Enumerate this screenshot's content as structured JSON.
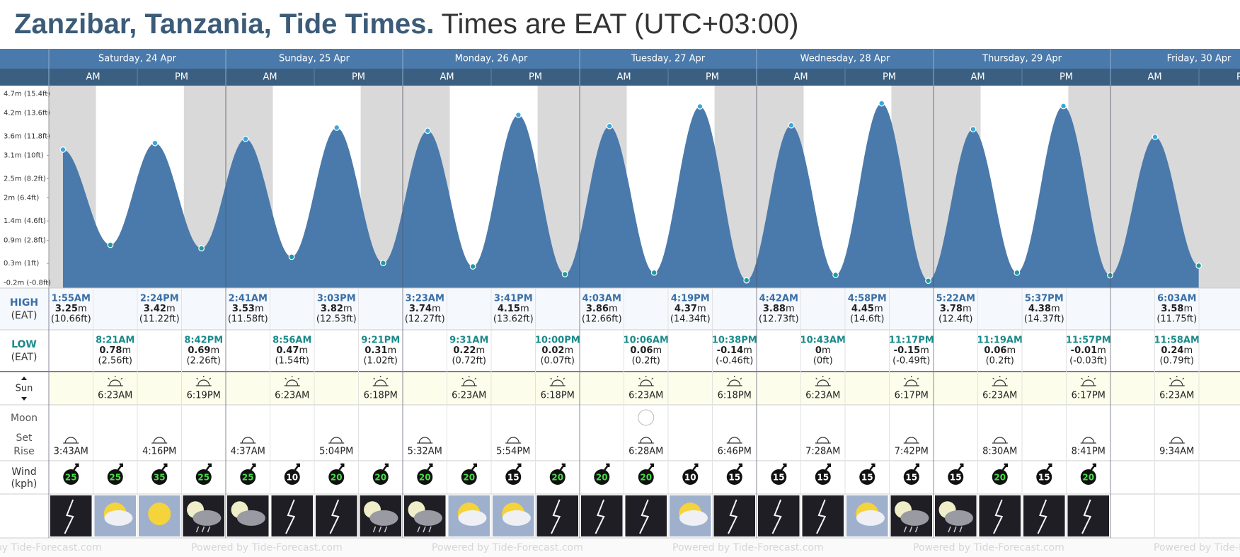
{
  "header": {
    "title": "Zanzibar, Tanzania, Tide Times.",
    "subtitle": "Times are EAT (UTC+03:00)"
  },
  "halves": [
    "AM",
    "PM"
  ],
  "labels": {
    "high": "HIGH",
    "low": "LOW",
    "tz": "(EAT)",
    "sun": "Sun",
    "moon": "Moon",
    "set": "Set",
    "rise": "Rise",
    "wind": "Wind",
    "wind_unit": "(kph)"
  },
  "unit": "m",
  "days": [
    {
      "name": "Saturday, 24 Apr",
      "high": [
        {
          "time": "1:55AM",
          "m": 3.25,
          "ft": "(10.66ft)"
        },
        null,
        {
          "time": "2:24PM",
          "m": 3.42,
          "ft": "(11.22ft)"
        },
        null
      ],
      "low": [
        null,
        {
          "time": "8:21AM",
          "m": 0.78,
          "ft": "(2.56ft)"
        },
        null,
        {
          "time": "8:42PM",
          "m": 0.69,
          "ft": "(2.26ft)"
        }
      ],
      "sun": [
        null,
        "6:23AM",
        null,
        "6:19PM"
      ],
      "moon": [
        "3:43AM",
        null,
        "4:16PM",
        null
      ],
      "wind": [
        25,
        25,
        35,
        25
      ]
    },
    {
      "name": "Sunday, 25 Apr",
      "high": [
        {
          "time": "2:41AM",
          "m": 3.53,
          "ft": "(11.58ft)"
        },
        null,
        {
          "time": "3:03PM",
          "m": 3.82,
          "ft": "(12.53ft)"
        },
        null
      ],
      "low": [
        null,
        {
          "time": "8:56AM",
          "m": 0.47,
          "ft": "(1.54ft)"
        },
        null,
        {
          "time": "9:21PM",
          "m": 0.31,
          "ft": "(1.02ft)"
        }
      ],
      "sun": [
        null,
        "6:23AM",
        null,
        "6:18PM"
      ],
      "moon": [
        "4:37AM",
        null,
        "5:04PM",
        null
      ],
      "wind": [
        25,
        10,
        20,
        20
      ]
    },
    {
      "name": "Monday, 26 Apr",
      "high": [
        {
          "time": "3:23AM",
          "m": 3.74,
          "ft": "(12.27ft)"
        },
        null,
        {
          "time": "3:41PM",
          "m": 4.15,
          "ft": "(13.62ft)"
        },
        null
      ],
      "low": [
        null,
        {
          "time": "9:31AM",
          "m": 0.22,
          "ft": "(0.72ft)"
        },
        null,
        {
          "time": "10:00PM",
          "m": 0.02,
          "ft": "(0.07ft)"
        }
      ],
      "sun": [
        null,
        "6:23AM",
        null,
        "6:18PM"
      ],
      "moon": [
        "5:32AM",
        null,
        "5:54PM",
        null
      ],
      "wind": [
        20,
        20,
        15,
        20
      ]
    },
    {
      "name": "Tuesday, 27 Apr",
      "high": [
        {
          "time": "4:03AM",
          "m": 3.86,
          "ft": "(12.66ft)"
        },
        null,
        {
          "time": "4:19PM",
          "m": 4.37,
          "ft": "(14.34ft)"
        },
        null
      ],
      "low": [
        null,
        {
          "time": "10:06AM",
          "m": 0.06,
          "ft": "(0.2ft)"
        },
        null,
        {
          "time": "10:38PM",
          "m": -0.14,
          "ft": "(-0.46ft)"
        }
      ],
      "sun": [
        null,
        "6:23AM",
        null,
        "6:18PM"
      ],
      "moon": [
        null,
        "6:28AM",
        null,
        "6:46PM"
      ],
      "wind": [
        20,
        20,
        10,
        15
      ]
    },
    {
      "name": "Wednesday, 28 Apr",
      "high": [
        {
          "time": "4:42AM",
          "m": 3.88,
          "ft": "(12.73ft)"
        },
        null,
        {
          "time": "4:58PM",
          "m": 4.45,
          "ft": "(14.6ft)"
        },
        null
      ],
      "low": [
        null,
        {
          "time": "10:43AM",
          "m": 0,
          "ft": "(0ft)"
        },
        null,
        {
          "time": "11:17PM",
          "m": -0.15,
          "ft": "(-0.49ft)"
        }
      ],
      "sun": [
        null,
        "6:23AM",
        null,
        "6:17PM"
      ],
      "moon": [
        null,
        "7:28AM",
        null,
        "7:42PM"
      ],
      "wind": [
        15,
        15,
        15,
        15
      ]
    },
    {
      "name": "Thursday, 29 Apr",
      "high": [
        {
          "time": "5:22AM",
          "m": 3.78,
          "ft": "(12.4ft)"
        },
        null,
        {
          "time": "5:37PM",
          "m": 4.38,
          "ft": "(14.37ft)"
        },
        null
      ],
      "low": [
        null,
        {
          "time": "11:19AM",
          "m": 0.06,
          "ft": "(0.2ft)"
        },
        null,
        {
          "time": "11:57PM",
          "m": -0.01,
          "ft": "(-0.03ft)"
        }
      ],
      "sun": [
        null,
        "6:23AM",
        null,
        "6:17PM"
      ],
      "moon": [
        null,
        "8:30AM",
        null,
        "8:41PM"
      ],
      "wind": [
        15,
        20,
        15,
        20
      ]
    },
    {
      "name": "Friday, 30 Apr",
      "high": [
        null,
        {
          "time": "6:03AM",
          "m": 3.58,
          "ft": "(11.75ft)"
        },
        null,
        null
      ],
      "low": [
        null,
        {
          "time": "11:58AM",
          "m": 0.24,
          "ft": "(0.79ft)"
        },
        null,
        null
      ],
      "sun": [
        null,
        "6:23AM",
        null,
        null
      ],
      "moon": [
        null,
        "9:34AM",
        null,
        null
      ],
      "wind": []
    }
  ],
  "footer": "Powered by Tide-Forecast.com",
  "chart_data": {
    "type": "area",
    "color": "#4a7aab",
    "ylim": [
      -0.34,
      4.91
    ],
    "yticks": [
      {
        "value": -0.2,
        "label": "-0.2m (-0.8ft)"
      },
      {
        "value": 0.3,
        "label": "0.3m (1ft)"
      },
      {
        "value": 0.9,
        "label": "0.9m (2.8ft)"
      },
      {
        "value": 1.4,
        "label": "1.4m (4.6ft)"
      },
      {
        "value": 2,
        "label": "2m (6.4ft)"
      },
      {
        "value": 2.5,
        "label": "2.5m (8.2ft)"
      },
      {
        "value": 3.1,
        "label": "3.1m (10ft)"
      },
      {
        "value": 3.6,
        "label": "3.6m (11.8ft)"
      },
      {
        "value": 4.2,
        "label": "4.2m (13.6ft)"
      },
      {
        "value": 4.7,
        "label": "4.7m (15.4ft)"
      }
    ]
  }
}
